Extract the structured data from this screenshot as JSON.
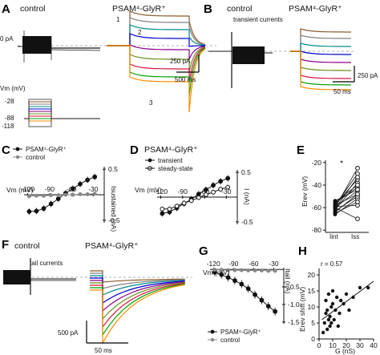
{
  "figure": {
    "panels": {
      "A": {
        "letter": "A",
        "title_left": "control",
        "title_right": "PSAM⁴-GlyR⁺",
        "zero_label": "0 pA",
        "scale_current": "250 pA",
        "scale_time": "500 ms",
        "markers": [
          "1",
          "2",
          "3"
        ],
        "vm_label": "Vm (mV)",
        "vm_ticks": [
          "-28",
          "-88",
          "-118"
        ]
      },
      "B": {
        "letter": "B",
        "title_left": "control",
        "title_right": "PSAM⁴-GlyR⁺",
        "subtitle": "transient currents",
        "scale_current": "250 pA",
        "scale_time": "50 ms"
      },
      "C": {
        "letter": "C",
        "xlabel": "Vm (mV)",
        "ylabel": "Isustained (nA)",
        "xticks": [
          "-120",
          "-90",
          "-60",
          "-30"
        ],
        "yticks": [
          "0.5",
          "-0.5"
        ],
        "legend": [
          "PSAM⁴-GlyR⁺",
          "control"
        ]
      },
      "D": {
        "letter": "D",
        "title": "PSAM⁴-GlyR⁺",
        "xlabel": "Vm (mV)",
        "ylabel": "I (nA)",
        "xticks": [
          "-120",
          "-90",
          "-60",
          "-30"
        ],
        "yticks": [
          "0.5",
          "-0.5"
        ],
        "legend": [
          "transient",
          "steady-state"
        ]
      },
      "E": {
        "letter": "E",
        "ylabel": "Erev (mV)",
        "yticks": [
          "-20",
          "-40",
          "-60",
          "-80"
        ],
        "xlabels": [
          "Iint",
          "Iss"
        ],
        "sig": "*"
      },
      "F": {
        "letter": "F",
        "title_left": "control",
        "title_right": "PSAM⁴-GlyR⁺",
        "subtitle": "tail currents",
        "scale_current": "500 pA",
        "scale_time": "50 ms"
      },
      "G": {
        "letter": "G",
        "xlabel": "Vm (mV)",
        "ylabel": "Itail (nA)",
        "xticks": [
          "-120",
          "-90",
          "-60",
          "-30"
        ],
        "yticks": [
          "-0.5",
          "-1.0",
          "-1.5"
        ],
        "legend": [
          "PSAM⁴-GlyR⁺",
          "control"
        ]
      },
      "H": {
        "letter": "H",
        "annotation": "r = 0.57",
        "ylabel": "Erev shift (mV)",
        "xlabel": "G (nS)",
        "xticks": [
          "0",
          "10",
          "20",
          "30",
          "40"
        ],
        "yticks": [
          "0",
          "5",
          "10",
          "15",
          "20"
        ]
      }
    },
    "colors": {
      "trace": [
        "#8b5a2b",
        "#808080",
        "#008b8b",
        "#0000cd",
        "#8b008b",
        "#6b8e23",
        "#dc143c",
        "#00a000",
        "#ff8c00"
      ]
    }
  },
  "chart_data": [
    {
      "panel": "C",
      "type": "scatter",
      "xlabel": "Vm (mV)",
      "ylabel": "Isustained (nA)",
      "xlim": [
        -125,
        -15
      ],
      "ylim": [
        -0.55,
        0.55
      ],
      "series": [
        {
          "name": "PSAM⁴-GlyR⁺",
          "x": [
            -118,
            -108,
            -98,
            -88,
            -78,
            -68,
            -58,
            -48,
            -38,
            -28
          ],
          "y": [
            -0.33,
            -0.32,
            -0.27,
            -0.18,
            -0.08,
            0.03,
            0.12,
            0.21,
            0.29,
            0.35
          ]
        },
        {
          "name": "control",
          "x": [
            -118,
            -108,
            -98,
            -88,
            -78,
            -68,
            -58,
            -48,
            -38,
            -28
          ],
          "y": [
            -0.03,
            -0.02,
            -0.02,
            -0.01,
            -0.01,
            0.0,
            0.0,
            0.01,
            0.01,
            0.02
          ]
        }
      ]
    },
    {
      "panel": "D",
      "type": "scatter",
      "xlabel": "Vm (mV)",
      "ylabel": "I (nA)",
      "xlim": [
        -125,
        -15
      ],
      "ylim": [
        -0.55,
        0.55
      ],
      "series": [
        {
          "name": "transient",
          "x": [
            -118,
            -108,
            -98,
            -88,
            -78,
            -68,
            -58,
            -48,
            -38,
            -28
          ],
          "y": [
            -0.33,
            -0.3,
            -0.22,
            -0.13,
            -0.04,
            0.06,
            0.15,
            0.24,
            0.32,
            0.38
          ]
        },
        {
          "name": "steady-state",
          "x": [
            -118,
            -108,
            -98,
            -88,
            -78,
            -68,
            -58,
            -48,
            -38,
            -28
          ],
          "y": [
            -0.24,
            -0.24,
            -0.18,
            -0.12,
            -0.07,
            -0.01,
            0.05,
            0.1,
            0.16,
            0.2
          ]
        }
      ]
    },
    {
      "panel": "E",
      "type": "scatter",
      "ylabel": "Erev (mV)",
      "ylim": [
        -82,
        -18
      ],
      "categories": [
        "Iint",
        "Iss"
      ],
      "pairs": [
        [
          -62,
          -38
        ],
        [
          -60,
          -25
        ],
        [
          -58,
          -30
        ],
        [
          -56,
          -42
        ],
        [
          -64,
          -48
        ],
        [
          -66,
          -52
        ],
        [
          -55,
          -40
        ],
        [
          -60,
          -45
        ],
        [
          -63,
          -50
        ],
        [
          -57,
          -35
        ],
        [
          -59,
          -58
        ],
        [
          -61,
          -33
        ],
        [
          -54,
          -44
        ],
        [
          -65,
          -55
        ],
        [
          -58,
          -48
        ],
        [
          -60,
          -70
        ]
      ]
    },
    {
      "panel": "G",
      "type": "scatter",
      "xlabel": "Vm (mV)",
      "ylabel": "Itail (nA)",
      "xlim": [
        -125,
        -15
      ],
      "ylim": [
        -1.55,
        0.05
      ],
      "series": [
        {
          "name": "PSAM⁴-GlyR⁺",
          "x": [
            -118,
            -108,
            -98,
            -88,
            -78,
            -68,
            -58,
            -48,
            -38,
            -28
          ],
          "y": [
            -0.08,
            -0.15,
            -0.23,
            -0.32,
            -0.42,
            -0.55,
            -0.72,
            -0.88,
            -1.05,
            -1.2
          ]
        },
        {
          "name": "control",
          "x": [
            -118,
            -108,
            -98,
            -88,
            -78,
            -68,
            -58,
            -48,
            -38,
            -28
          ],
          "y": [
            -0.01,
            -0.01,
            -0.02,
            -0.02,
            -0.02,
            -0.03,
            -0.03,
            -0.03,
            -0.04,
            -0.04
          ]
        }
      ]
    },
    {
      "panel": "H",
      "type": "scatter",
      "xlabel": "G (nS)",
      "ylabel": "Erev shift (mV)",
      "xlim": [
        0,
        40
      ],
      "ylim": [
        0,
        22
      ],
      "points": [
        [
          3,
          2
        ],
        [
          4,
          5
        ],
        [
          5,
          8
        ],
        [
          5,
          12
        ],
        [
          6,
          3
        ],
        [
          6,
          9
        ],
        [
          7,
          6
        ],
        [
          7,
          14
        ],
        [
          8,
          4
        ],
        [
          8,
          7
        ],
        [
          9,
          10
        ],
        [
          9,
          5
        ],
        [
          10,
          11
        ],
        [
          10,
          15
        ],
        [
          11,
          6
        ],
        [
          12,
          9
        ],
        [
          13,
          13
        ],
        [
          14,
          4
        ],
        [
          15,
          8
        ],
        [
          16,
          12
        ],
        [
          18,
          11
        ],
        [
          20,
          14
        ],
        [
          22,
          9
        ],
        [
          25,
          13
        ],
        [
          30,
          16
        ],
        [
          36,
          16
        ]
      ],
      "fit": [
        [
          2,
          6
        ],
        [
          40,
          18
        ]
      ]
    }
  ]
}
